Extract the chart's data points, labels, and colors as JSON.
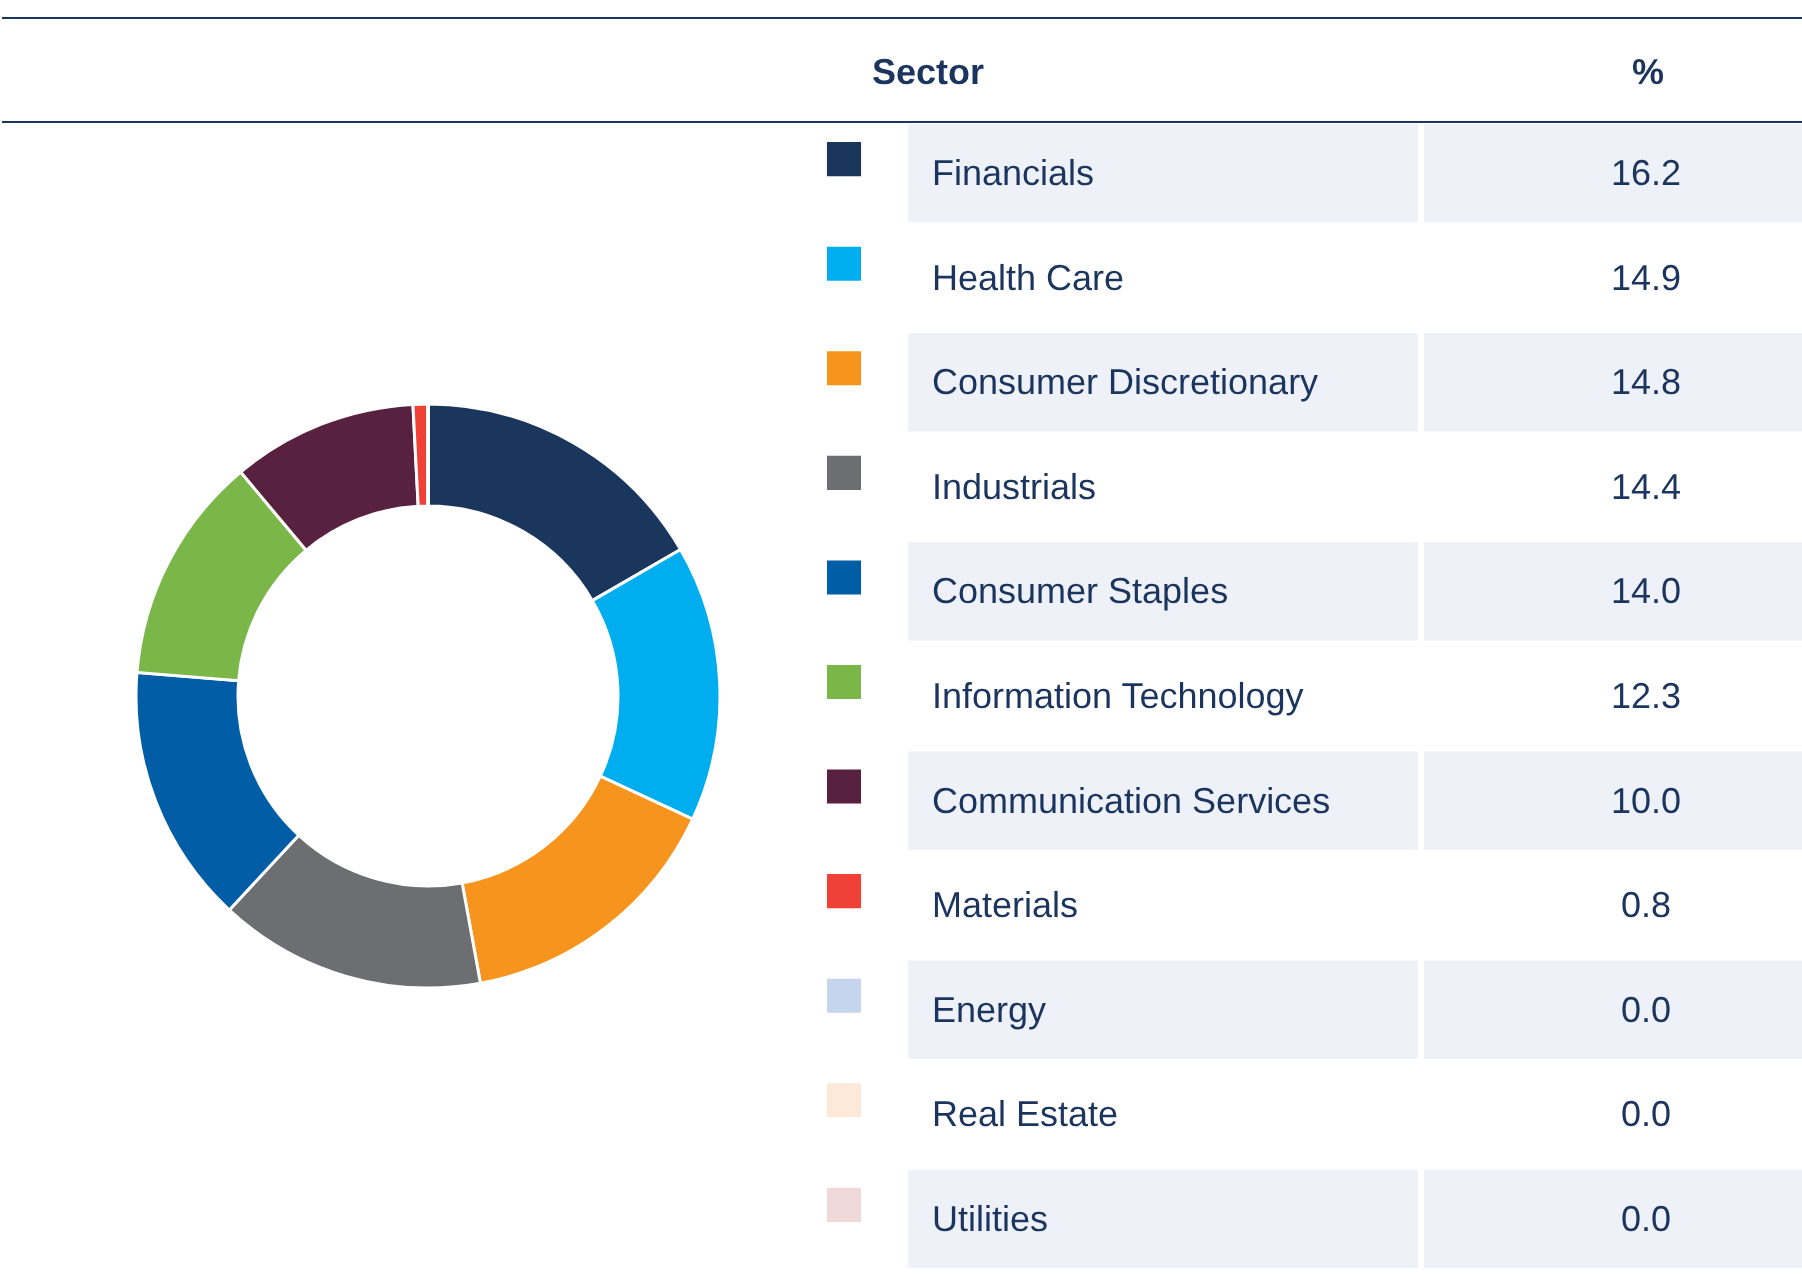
{
  "chart_data": {
    "type": "donut",
    "legend_title": "Sector",
    "annotations": [
      "%"
    ],
    "categories": [
      "Financials",
      "Health Care",
      "Consumer Discretionary",
      "Industrials",
      "Consumer Staples",
      "Information Technology",
      "Communication Services",
      "Materials",
      "Energy",
      "Real Estate",
      "Utilities"
    ],
    "values": [
      16.2,
      14.9,
      14.8,
      14.4,
      14,
      12.3,
      10,
      0.8,
      0,
      0,
      0
    ],
    "value_labels": [
      "16.2",
      "14.9",
      "14.8",
      "14.4",
      "14.0",
      "12.3",
      "10.0",
      "0.8",
      "0.0",
      "0.0",
      "0.0"
    ],
    "colors": [
      "#1b365d",
      "#00aeef",
      "#f7941d",
      "#6d6e71",
      "#005da6",
      "#7ab648",
      "#58213f",
      "#ef4135",
      "#c5d5ee",
      "#fde9d9",
      "#efdad9"
    ],
    "legend": "right"
  }
}
